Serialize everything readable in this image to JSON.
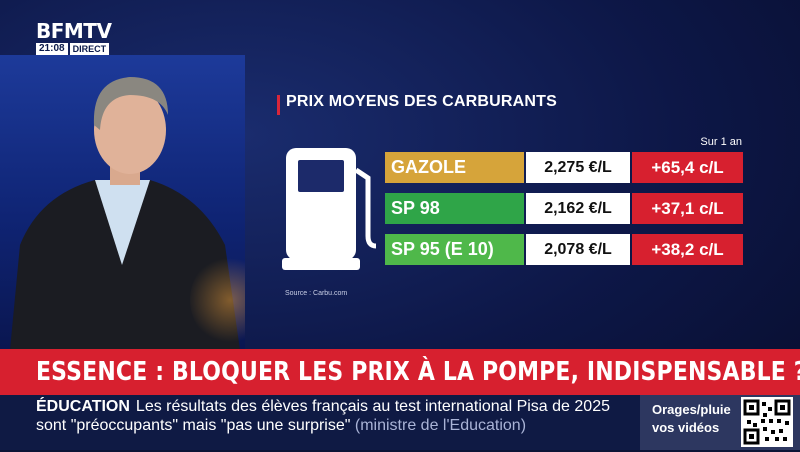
{
  "channel": {
    "logo": "BFMTV",
    "time": "21:08",
    "live_label": "DIRECT"
  },
  "panel": {
    "title": "PRIX MOYENS DES CARBURANTS",
    "period_label": "Sur 1 an",
    "source": "Source : Carbu.com",
    "rows": [
      {
        "name": "GAZOLE",
        "price": "2,275 €/L",
        "delta": "+65,4 c/L",
        "color": "#d6a43a"
      },
      {
        "name": "SP 98",
        "price": "2,162 €/L",
        "delta": "+37,1 c/L",
        "color": "#2fa548"
      },
      {
        "name": "SP 95 (E 10)",
        "price": "2,078 €/L",
        "delta": "+38,2 c/L",
        "color": "#4fb84a"
      }
    ]
  },
  "headline": "ESSENCE : BLOQUER LES PRIX À LA POMPE, INDISPENSABLE ?",
  "ticker": {
    "category": "ÉDUCATION",
    "line1": "Les résultats des élèves français au test international Pisa de 2025",
    "line2": "sont \"préoccupants\" mais \"pas une surprise\"",
    "attribution": "(ministre de l'Education)"
  },
  "promo": {
    "line1": "Orages/pluie",
    "line2": "vos vidéos"
  },
  "colors": {
    "accent_red": "#d7202f",
    "background": "#0c1436",
    "ticker": "#0f1a44"
  }
}
